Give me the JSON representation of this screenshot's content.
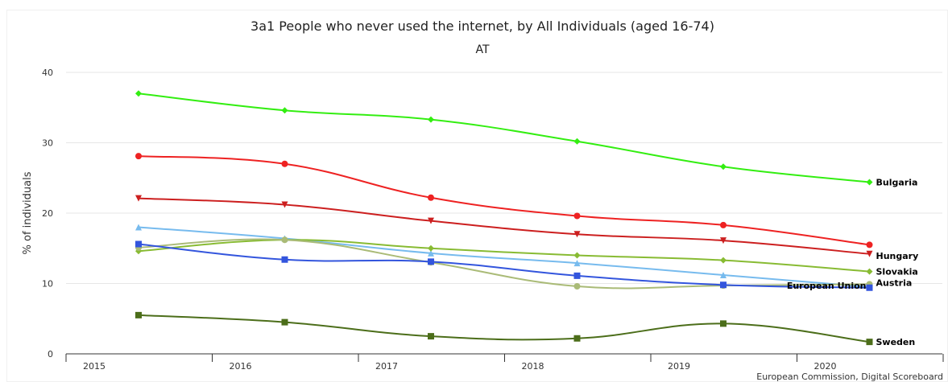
{
  "chart_data": {
    "type": "line",
    "title": "3a1 People who never used the internet, by All Individuals (aged 16-74)",
    "subtitle": "AT",
    "xlabel": "",
    "ylabel": "% of individuals",
    "x_ticks": [
      "2015",
      "2016",
      "2017",
      "2018",
      "2019",
      "2020"
    ],
    "y_ticks": [
      0,
      10,
      20,
      30,
      40
    ],
    "ylim": [
      0,
      40
    ],
    "x": [
      2015,
      2016,
      2017,
      2018,
      2019,
      2020
    ],
    "grid": "horizontal",
    "credits": "European Commission, Digital Scoreboard",
    "series": [
      {
        "name": "Bulgaria",
        "color": "#33ee11",
        "marker": "diamond",
        "values": [
          37.0,
          34.6,
          33.3,
          30.2,
          26.6,
          24.4
        ]
      },
      {
        "name": "",
        "color": "#ee2222",
        "marker": "circle",
        "values": [
          28.1,
          27.0,
          22.2,
          19.6,
          18.3,
          15.5
        ]
      },
      {
        "name": "Hungary",
        "color": "#cc1f1f",
        "marker": "triangle-down",
        "values": [
          22.1,
          21.2,
          18.9,
          17.0,
          16.1,
          14.2
        ]
      },
      {
        "name": "",
        "color": "#77bbee",
        "marker": "triangle",
        "values": [
          18.0,
          16.4,
          14.3,
          12.9,
          11.2,
          9.5
        ]
      },
      {
        "name": "Slovakia",
        "color": "#88bb33",
        "marker": "diamond",
        "values": [
          14.6,
          16.2,
          15.0,
          14.0,
          13.3,
          11.7
        ]
      },
      {
        "name": "Austria",
        "color": "#aabb77",
        "marker": "circle",
        "values": [
          15.1,
          16.2,
          13.0,
          9.6,
          9.7,
          9.9
        ]
      },
      {
        "name": "European Union",
        "color": "#3355dd",
        "marker": "square",
        "values": [
          15.6,
          13.4,
          13.1,
          11.1,
          9.8,
          9.4
        ]
      },
      {
        "name": "Sweden",
        "color": "#4c6e1a",
        "marker": "square",
        "values": [
          5.5,
          4.5,
          2.5,
          2.2,
          4.3,
          1.7
        ]
      }
    ]
  }
}
